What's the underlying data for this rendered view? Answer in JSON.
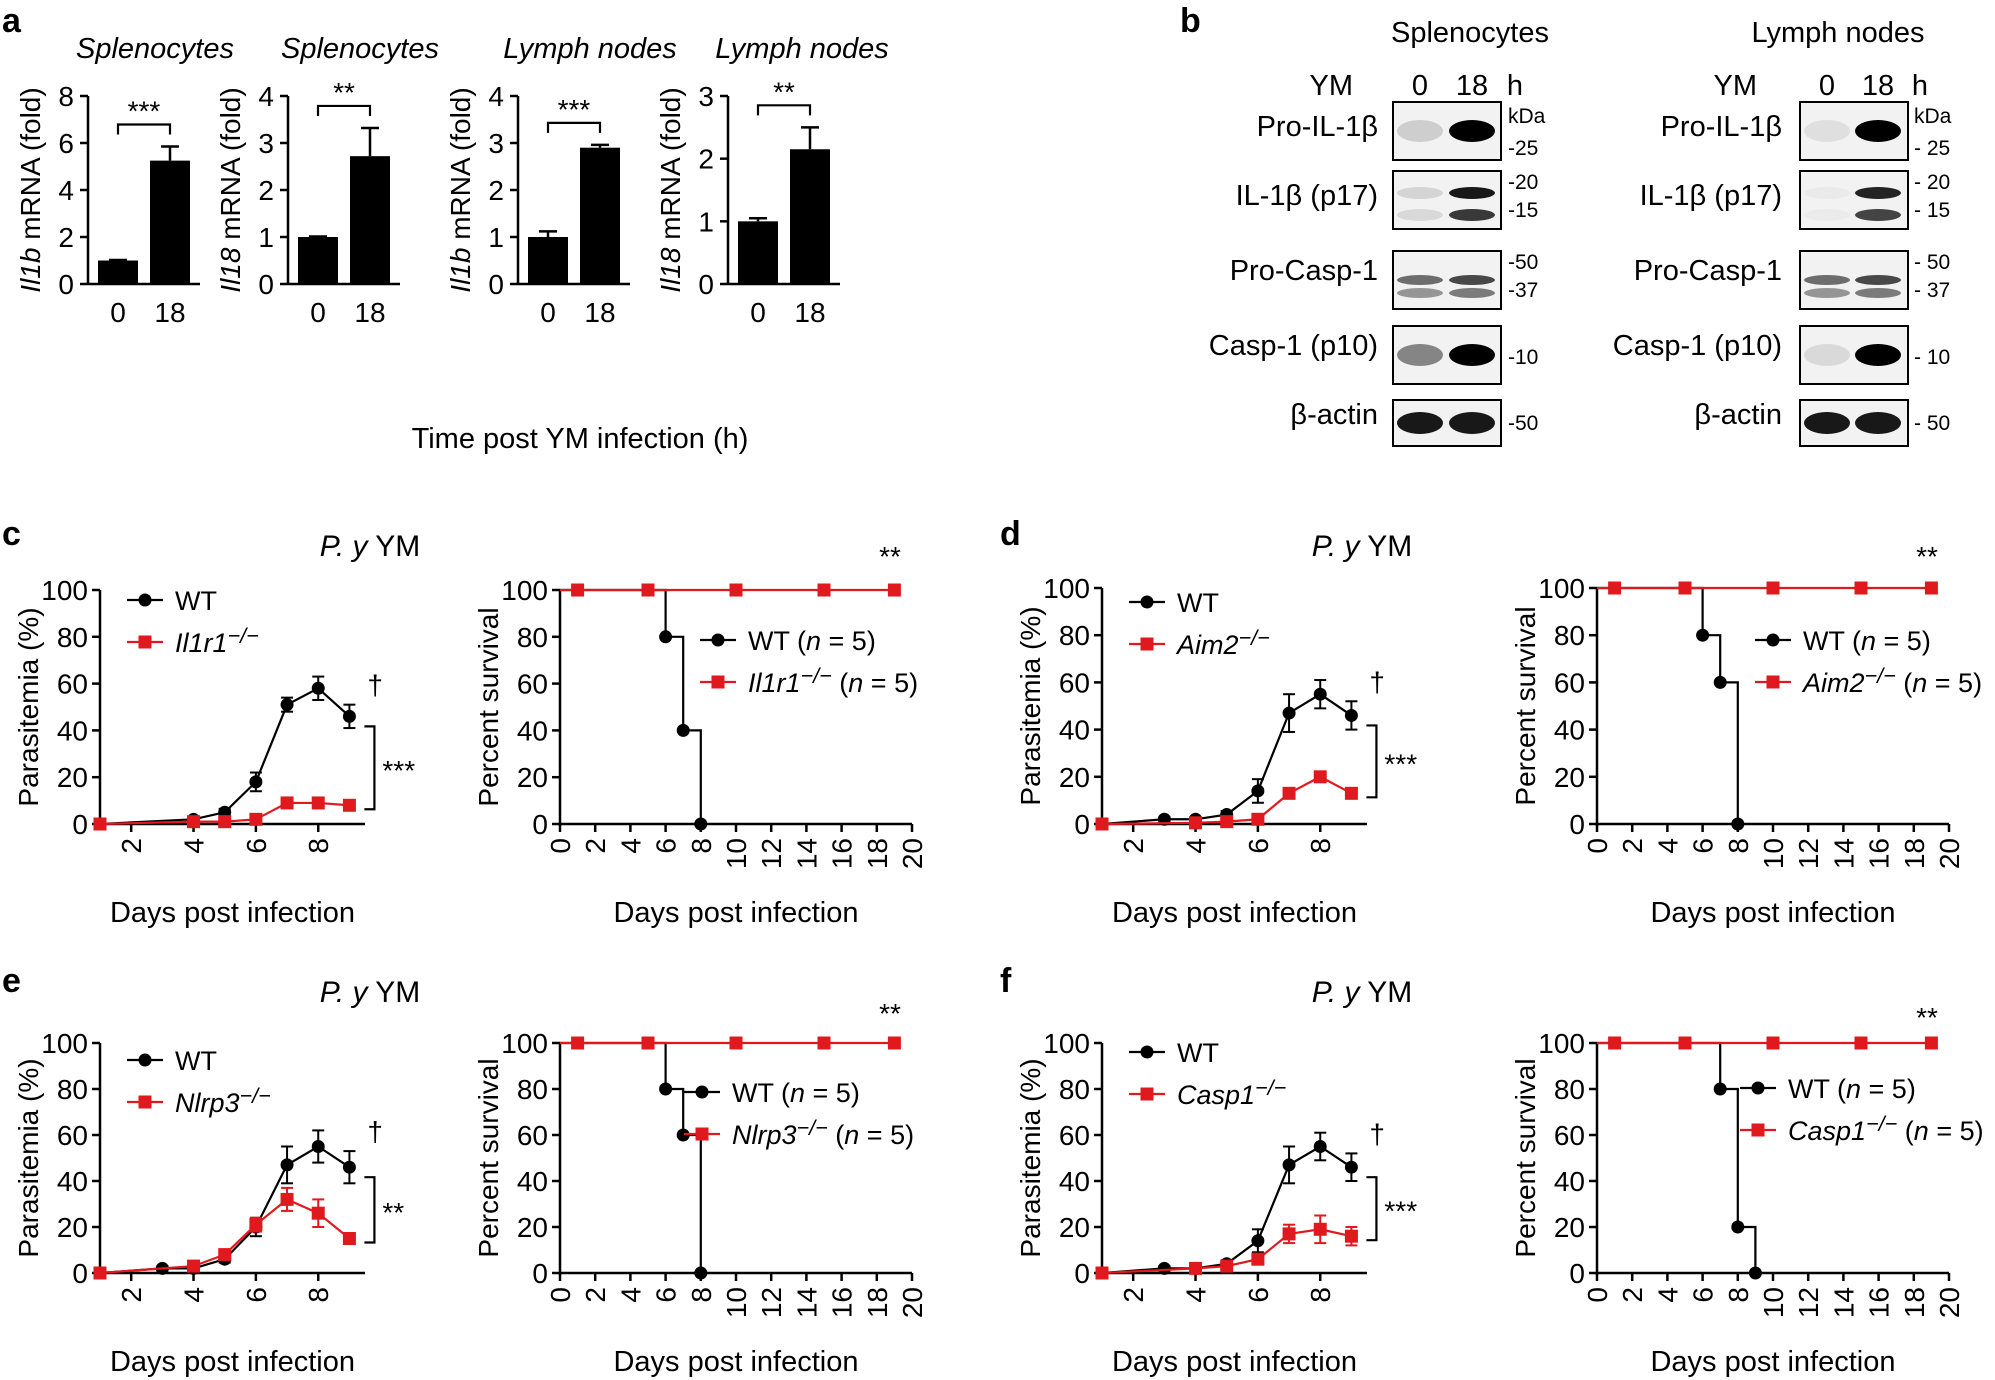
{
  "panel_letters": [
    "a",
    "b",
    "c",
    "d",
    "e",
    "f"
  ],
  "panel_a": {
    "x_caption": "Time post YM infection (h)"
  },
  "panel_b": {
    "kda_label": "kDa",
    "groups": [
      {
        "title": "Splenocytes",
        "ym_label": "YM",
        "lanes": [
          "0",
          "18"
        ],
        "unit": "h",
        "rows": [
          {
            "label": "Pro-IL-1β",
            "markers": [
              "-25"
            ],
            "bands": [
              0.15,
              1.0
            ]
          },
          {
            "label": "IL-1β (p17)",
            "markers": [
              "-20",
              "-15"
            ],
            "bands": [
              0.12,
              0.9
            ]
          },
          {
            "label": "Pro-Casp-1",
            "markers": [
              "-50",
              "-37"
            ],
            "bands": [
              0.55,
              0.7
            ]
          },
          {
            "label": "Casp-1 (p10)",
            "markers": [
              "-10"
            ],
            "bands": [
              0.45,
              1.0
            ]
          },
          {
            "label": "β-actin",
            "markers": [
              "-50"
            ],
            "bands": [
              0.9,
              0.9
            ]
          }
        ]
      },
      {
        "title": "Lymph nodes",
        "ym_label": "YM",
        "lanes": [
          "0",
          "18"
        ],
        "unit": "h",
        "rows": [
          {
            "label": "Pro-IL-1β",
            "markers": [
              "- 25"
            ],
            "bands": [
              0.08,
              1.0
            ]
          },
          {
            "label": "IL-1β (p17)",
            "markers": [
              "- 20",
              "- 15"
            ],
            "bands": [
              0.03,
              0.85
            ]
          },
          {
            "label": "Pro-Casp-1",
            "markers": [
              "- 50",
              "- 37"
            ],
            "bands": [
              0.55,
              0.7
            ]
          },
          {
            "label": "Casp-1 (p10)",
            "markers": [
              "- 10"
            ],
            "bands": [
              0.1,
              1.0
            ]
          },
          {
            "label": "β-actin",
            "markers": [
              "- 50"
            ],
            "bands": [
              0.9,
              0.9
            ]
          }
        ]
      }
    ]
  },
  "colors": {
    "ko": "#e0191f",
    "wt": "#000000"
  },
  "chart_data": [
    {
      "id": "a1",
      "type": "bar",
      "title": "Splenocytes",
      "ylabel_gene": "Il1b",
      "ylabel_rest": " mRNA (fold)",
      "categories": [
        "0",
        "18"
      ],
      "values": [
        1.0,
        5.25
      ],
      "errors": [
        0.02,
        0.6
      ],
      "ylim": [
        0,
        8
      ],
      "yticks": [
        "0",
        "2",
        "4",
        "6",
        "8"
      ],
      "significance": "***"
    },
    {
      "id": "a2",
      "type": "bar",
      "title": "Splenocytes",
      "ylabel_gene": "Il18",
      "ylabel_rest": " mRNA (fold)",
      "categories": [
        "0",
        "18"
      ],
      "values": [
        1.0,
        2.72
      ],
      "errors": [
        0.01,
        0.6
      ],
      "ylim": [
        0,
        4
      ],
      "yticks": [
        "0",
        "1",
        "2",
        "3",
        "4"
      ],
      "significance": "**"
    },
    {
      "id": "a3",
      "type": "bar",
      "title": "Lymph nodes",
      "ylabel_gene": "Il1b",
      "ylabel_rest": " mRNA (fold)",
      "categories": [
        "0",
        "18"
      ],
      "values": [
        1.0,
        2.9
      ],
      "errors": [
        0.12,
        0.06
      ],
      "ylim": [
        0,
        4
      ],
      "yticks": [
        "0",
        "1",
        "2",
        "3",
        "4"
      ],
      "significance": "***"
    },
    {
      "id": "a4",
      "type": "bar",
      "title": "Lymph nodes",
      "ylabel_gene": "Il18",
      "ylabel_rest": " mRNA (fold)",
      "categories": [
        "0",
        "18"
      ],
      "values": [
        1.0,
        2.15
      ],
      "errors": [
        0.05,
        0.35
      ],
      "ylim": [
        0,
        3
      ],
      "yticks": [
        "0",
        "1",
        "2",
        "3"
      ],
      "significance": "**"
    },
    {
      "id": "c1",
      "type": "line",
      "title_italic": "P. y",
      "title_rest": " YM",
      "ylabel": "Parasitemia (%)",
      "xlabel": "Days post infection",
      "xlim": [
        1,
        9.5
      ],
      "xticks": [
        "2",
        "4",
        "6",
        "8"
      ],
      "ylim": [
        0,
        100
      ],
      "yticks": [
        "0",
        "20",
        "40",
        "60",
        "80",
        "100"
      ],
      "dagger": "†",
      "significance": "***",
      "series": [
        {
          "name": "WT",
          "name_italic": false,
          "color": "#000000",
          "marker": "circle",
          "x": [
            1,
            4,
            5,
            6,
            7,
            8,
            9
          ],
          "y": [
            0,
            2,
            5,
            18,
            51,
            58,
            46
          ],
          "err": [
            0,
            1,
            1.5,
            4,
            3,
            5,
            5
          ]
        },
        {
          "name": "Il1r1−/−",
          "name_italic": true,
          "color": "#e0191f",
          "marker": "square",
          "x": [
            1,
            4,
            5,
            6,
            7,
            8,
            9
          ],
          "y": [
            0,
            1,
            1,
            2,
            9,
            9,
            8
          ],
          "err": [
            0,
            0.5,
            0.5,
            1,
            1,
            1.5,
            1.5
          ]
        }
      ]
    },
    {
      "id": "c2",
      "type": "line",
      "step": true,
      "ylabel": "Percent survival",
      "xlabel": "Days post infection",
      "xlim": [
        0,
        20
      ],
      "xticks": [
        "0",
        "2",
        "4",
        "6",
        "8",
        "10",
        "12",
        "14",
        "16",
        "18",
        "20"
      ],
      "ylim": [
        0,
        100
      ],
      "yticks": [
        "0",
        "20",
        "40",
        "60",
        "80",
        "100"
      ],
      "significance": "**",
      "series": [
        {
          "name": "WT",
          "name_italic": false,
          "n_label": " (n = 5)",
          "color": "#000000",
          "marker": "circle",
          "x": [
            0,
            6,
            7,
            8
          ],
          "y": [
            100,
            80,
            40,
            0
          ],
          "marker_x": [
            6,
            7,
            8
          ],
          "marker_y": [
            80,
            40,
            0
          ]
        },
        {
          "name": "Il1r1−/−",
          "name_italic": true,
          "n_label": " (n = 5)",
          "color": "#e0191f",
          "marker": "square",
          "x": [
            0,
            19
          ],
          "y": [
            100,
            100
          ],
          "marker_x": [
            1,
            5,
            10,
            15,
            19
          ],
          "marker_y": [
            100,
            100,
            100,
            100,
            100
          ]
        }
      ]
    },
    {
      "id": "d1",
      "type": "line",
      "title_italic": "P. y",
      "title_rest": " YM",
      "ylabel": "Parasitemia (%)",
      "xlabel": "Days post infection",
      "xlim": [
        1,
        9.5
      ],
      "xticks": [
        "2",
        "4",
        "6",
        "8"
      ],
      "ylim": [
        0,
        100
      ],
      "yticks": [
        "0",
        "20",
        "40",
        "60",
        "80",
        "100"
      ],
      "dagger": "†",
      "significance": "***",
      "series": [
        {
          "name": "WT",
          "name_italic": false,
          "color": "#000000",
          "marker": "circle",
          "x": [
            1,
            3,
            4,
            5,
            6,
            7,
            8,
            9
          ],
          "y": [
            0,
            2,
            2,
            4,
            14,
            47,
            55,
            46
          ],
          "err": [
            0,
            1,
            1,
            1.5,
            5,
            8,
            6,
            6
          ]
        },
        {
          "name": "Aim2−/−",
          "name_italic": true,
          "color": "#e0191f",
          "marker": "square",
          "x": [
            1,
            4,
            5,
            6,
            7,
            8,
            9
          ],
          "y": [
            0,
            0.5,
            1,
            2,
            13,
            20,
            13
          ],
          "err": [
            0,
            0.5,
            0.5,
            1,
            1,
            1,
            1
          ]
        }
      ]
    },
    {
      "id": "d2",
      "type": "line",
      "step": true,
      "ylabel": "Percent survival",
      "xlabel": "Days post infection",
      "xlim": [
        0,
        20
      ],
      "xticks": [
        "0",
        "2",
        "4",
        "6",
        "8",
        "10",
        "12",
        "14",
        "16",
        "18",
        "20"
      ],
      "ylim": [
        0,
        100
      ],
      "yticks": [
        "0",
        "20",
        "40",
        "60",
        "80",
        "100"
      ],
      "significance": "**",
      "series": [
        {
          "name": "WT",
          "name_italic": false,
          "n_label": " (n = 5)",
          "color": "#000000",
          "marker": "circle",
          "x": [
            0,
            6,
            7,
            8
          ],
          "y": [
            100,
            80,
            60,
            0
          ],
          "marker_x": [
            6,
            7,
            8
          ],
          "marker_y": [
            80,
            60,
            0
          ]
        },
        {
          "name": "Aim2−/−",
          "name_italic": true,
          "n_label": " (n = 5)",
          "color": "#e0191f",
          "marker": "square",
          "x": [
            0,
            19
          ],
          "y": [
            100,
            100
          ],
          "marker_x": [
            1,
            5,
            10,
            15,
            19
          ],
          "marker_y": [
            100,
            100,
            100,
            100,
            100
          ]
        }
      ]
    },
    {
      "id": "e1",
      "type": "line",
      "title_italic": "P. y",
      "title_rest": " YM",
      "ylabel": "Parasitemia (%)",
      "xlabel": "Days post infection",
      "xlim": [
        1,
        9.5
      ],
      "xticks": [
        "2",
        "4",
        "6",
        "8"
      ],
      "ylim": [
        0,
        100
      ],
      "yticks": [
        "0",
        "20",
        "40",
        "60",
        "80",
        "100"
      ],
      "dagger": "†",
      "significance": "**",
      "series": [
        {
          "name": "WT",
          "name_italic": false,
          "color": "#000000",
          "marker": "circle",
          "x": [
            1,
            3,
            4,
            5,
            6,
            7,
            8,
            9
          ],
          "y": [
            0,
            2,
            2,
            6,
            20,
            47,
            55,
            46
          ],
          "err": [
            0,
            1,
            1,
            1.5,
            4,
            8,
            7,
            7
          ]
        },
        {
          "name": "Nlrp3−/−",
          "name_italic": true,
          "color": "#e0191f",
          "marker": "square",
          "x": [
            1,
            4,
            5,
            6,
            7,
            8,
            9
          ],
          "y": [
            0,
            3,
            8,
            21,
            32,
            26,
            15
          ],
          "err": [
            0,
            1,
            2,
            3,
            5,
            6,
            2
          ]
        }
      ]
    },
    {
      "id": "e2",
      "type": "line",
      "step": true,
      "ylabel": "Percent survival",
      "xlabel": "Days post infection",
      "xlim": [
        0,
        20
      ],
      "xticks": [
        "0",
        "2",
        "4",
        "6",
        "8",
        "10",
        "12",
        "14",
        "16",
        "18",
        "20"
      ],
      "ylim": [
        0,
        100
      ],
      "yticks": [
        "0",
        "20",
        "40",
        "60",
        "80",
        "100"
      ],
      "significance": "**",
      "series": [
        {
          "name": "WT",
          "name_italic": false,
          "n_label": " (n = 5)",
          "color": "#000000",
          "marker": "circle",
          "x": [
            0,
            6,
            7,
            8
          ],
          "y": [
            100,
            80,
            60,
            0
          ],
          "marker_x": [
            6,
            7,
            8
          ],
          "marker_y": [
            80,
            60,
            0
          ]
        },
        {
          "name": "Nlrp3−/−",
          "name_italic": true,
          "n_label": " (n = 5)",
          "color": "#e0191f",
          "marker": "square",
          "x": [
            0,
            19
          ],
          "y": [
            100,
            100
          ],
          "marker_x": [
            1,
            5,
            10,
            15,
            19
          ],
          "marker_y": [
            100,
            100,
            100,
            100,
            100
          ]
        }
      ]
    },
    {
      "id": "f1",
      "type": "line",
      "title_italic": "P. y",
      "title_rest": " YM",
      "ylabel": "Parasitemia (%)",
      "xlabel": "Days post infection",
      "xlim": [
        1,
        9.5
      ],
      "xticks": [
        "2",
        "4",
        "6",
        "8"
      ],
      "ylim": [
        0,
        100
      ],
      "yticks": [
        "0",
        "20",
        "40",
        "60",
        "80",
        "100"
      ],
      "dagger": "†",
      "significance": "***",
      "series": [
        {
          "name": "WT",
          "name_italic": false,
          "color": "#000000",
          "marker": "circle",
          "x": [
            1,
            3,
            4,
            5,
            6,
            7,
            8,
            9
          ],
          "y": [
            0,
            2,
            2,
            4,
            14,
            47,
            55,
            46
          ],
          "err": [
            0,
            1,
            1,
            1.5,
            5,
            8,
            6,
            6
          ]
        },
        {
          "name": "Casp1−/−",
          "name_italic": true,
          "color": "#e0191f",
          "marker": "square",
          "x": [
            1,
            4,
            5,
            6,
            7,
            8,
            9
          ],
          "y": [
            0,
            2,
            3,
            6,
            17,
            19,
            16
          ],
          "err": [
            0,
            1,
            1,
            1.5,
            4,
            6,
            4
          ]
        }
      ]
    },
    {
      "id": "f2",
      "type": "line",
      "step": true,
      "ylabel": "Percent survival",
      "xlabel": "Days post infection",
      "xlim": [
        0,
        20
      ],
      "xticks": [
        "0",
        "2",
        "4",
        "6",
        "8",
        "10",
        "12",
        "14",
        "16",
        "18",
        "20"
      ],
      "ylim": [
        0,
        100
      ],
      "yticks": [
        "0",
        "20",
        "40",
        "60",
        "80",
        "100"
      ],
      "significance": "**",
      "series": [
        {
          "name": "WT",
          "name_italic": false,
          "n_label": " (n = 5)",
          "color": "#000000",
          "marker": "circle",
          "x": [
            0,
            7,
            8,
            9
          ],
          "y": [
            100,
            80,
            20,
            0
          ],
          "marker_x": [
            7,
            8,
            9
          ],
          "marker_y": [
            80,
            20,
            0
          ]
        },
        {
          "name": "Casp1−/−",
          "name_italic": true,
          "n_label": " (n = 5)",
          "color": "#e0191f",
          "marker": "square",
          "x": [
            0,
            19
          ],
          "y": [
            100,
            100
          ],
          "marker_x": [
            1,
            5,
            10,
            15,
            19
          ],
          "marker_y": [
            100,
            100,
            100,
            100,
            100
          ]
        }
      ]
    }
  ]
}
